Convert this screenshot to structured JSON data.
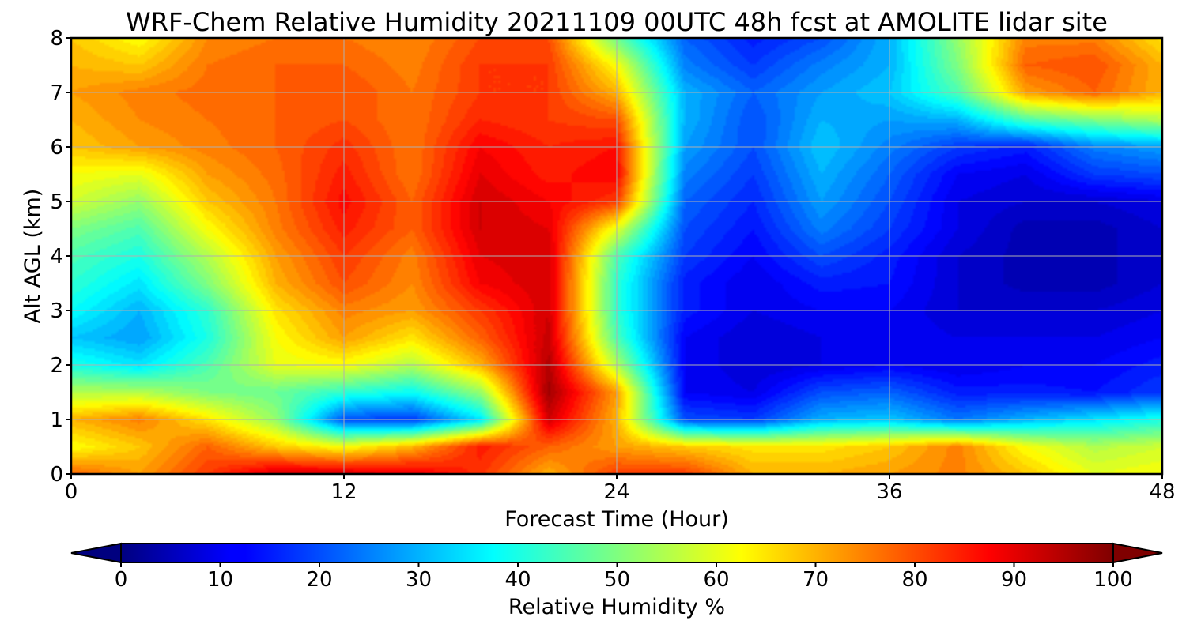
{
  "chart_data": {
    "type": "heatmap",
    "title": "WRF-Chem Relative Humidity 20211109 00UTC 48h fcst at AMOLITE lidar site",
    "xlabel": "Forecast Time (Hour)",
    "ylabel": "Alt AGL (km)",
    "xlim": [
      0,
      48
    ],
    "ylim": [
      0,
      8
    ],
    "xticks": [
      0,
      12,
      24,
      36,
      48
    ],
    "yticks": [
      0,
      1,
      2,
      3,
      4,
      5,
      6,
      7,
      8
    ],
    "grid": true,
    "colormap": "jet",
    "colorbar": {
      "label": "Relative Humidity %",
      "min": 0,
      "max": 100,
      "ticks": [
        0,
        10,
        20,
        30,
        40,
        50,
        60,
        70,
        80,
        90,
        100
      ],
      "extend": "both",
      "placement": "bottom"
    },
    "x": [
      0,
      3,
      6,
      9,
      12,
      15,
      18,
      21,
      24,
      27,
      30,
      33,
      36,
      39,
      42,
      45,
      48
    ],
    "y": [
      0,
      0.5,
      1,
      1.5,
      2,
      2.5,
      3,
      3.5,
      4,
      4.5,
      5,
      5.5,
      6,
      6.5,
      7,
      7.5,
      8
    ],
    "z": [
      [
        78,
        72,
        82,
        92,
        92,
        90,
        83,
        70,
        82,
        82,
        70,
        70,
        72,
        75,
        68,
        60,
        62
      ],
      [
        62,
        68,
        78,
        68,
        62,
        70,
        85,
        78,
        72,
        68,
        65,
        65,
        68,
        75,
        62,
        55,
        58
      ],
      [
        70,
        75,
        65,
        52,
        20,
        18,
        35,
        92,
        70,
        20,
        18,
        30,
        32,
        24,
        30,
        35,
        40
      ],
      [
        55,
        55,
        50,
        48,
        42,
        38,
        52,
        97,
        72,
        12,
        10,
        20,
        22,
        15,
        15,
        14,
        18
      ],
      [
        40,
        35,
        45,
        60,
        62,
        55,
        70,
        95,
        55,
        12,
        8,
        10,
        12,
        10,
        12,
        12,
        15
      ],
      [
        32,
        28,
        40,
        62,
        72,
        65,
        78,
        93,
        45,
        12,
        8,
        10,
        12,
        10,
        10,
        10,
        12
      ],
      [
        38,
        30,
        42,
        65,
        75,
        72,
        82,
        92,
        42,
        15,
        10,
        12,
        12,
        8,
        8,
        8,
        10
      ],
      [
        42,
        35,
        50,
        70,
        80,
        74,
        88,
        92,
        42,
        15,
        10,
        15,
        14,
        8,
        5,
        5,
        8
      ],
      [
        45,
        40,
        55,
        72,
        82,
        75,
        90,
        92,
        45,
        18,
        12,
        20,
        15,
        8,
        5,
        5,
        8
      ],
      [
        50,
        45,
        62,
        75,
        85,
        78,
        92,
        90,
        60,
        20,
        14,
        25,
        18,
        10,
        5,
        5,
        8
      ],
      [
        58,
        52,
        68,
        76,
        87,
        78,
        92,
        88,
        82,
        22,
        16,
        28,
        20,
        10,
        8,
        8,
        10
      ],
      [
        62,
        60,
        72,
        77,
        85,
        76,
        90,
        85,
        88,
        25,
        18,
        30,
        22,
        12,
        10,
        18,
        20
      ],
      [
        68,
        72,
        75,
        78,
        83,
        76,
        88,
        84,
        86,
        28,
        20,
        32,
        25,
        18,
        15,
        25,
        28
      ],
      [
        70,
        74,
        76,
        78,
        80,
        76,
        84,
        82,
        80,
        30,
        20,
        30,
        28,
        30,
        45,
        50,
        55
      ],
      [
        72,
        75,
        77,
        78,
        80,
        76,
        82,
        82,
        70,
        30,
        22,
        28,
        32,
        45,
        72,
        78,
        70
      ],
      [
        70,
        68,
        76,
        78,
        78,
        75,
        82,
        82,
        62,
        25,
        18,
        25,
        30,
        50,
        78,
        80,
        70
      ],
      [
        68,
        62,
        74,
        76,
        76,
        74,
        80,
        80,
        48,
        22,
        15,
        20,
        30,
        52,
        75,
        75,
        65
      ]
    ]
  }
}
